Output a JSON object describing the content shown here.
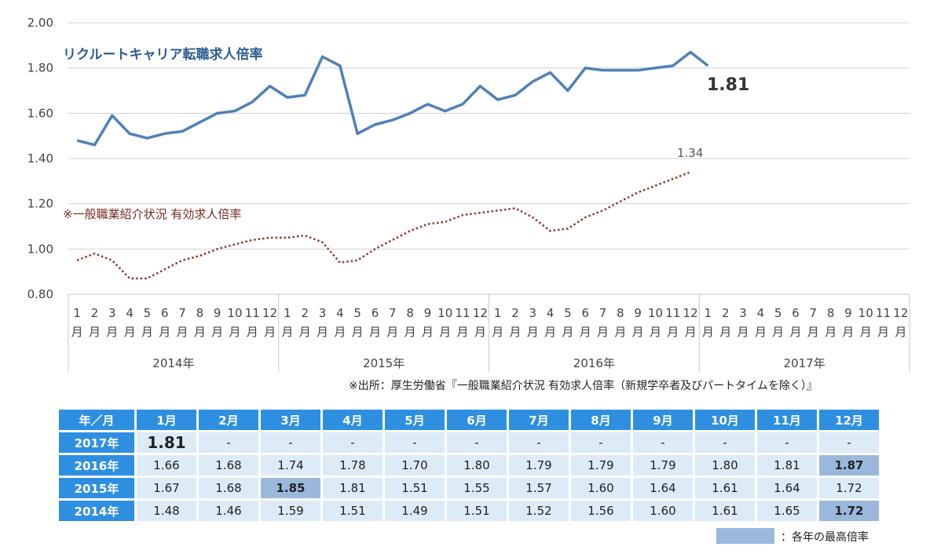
{
  "chart_data": {
    "type": "line",
    "title": "リクルートキャリア転職求人倍率",
    "secondary_title": "※一般職業紹介状況 有効求人倍率",
    "ylim": [
      0.8,
      2.0
    ],
    "y_ticks": [
      "2.00",
      "1.80",
      "1.60",
      "1.40",
      "1.20",
      "1.00",
      "0.80"
    ],
    "y_tick_values": [
      2.0,
      1.8,
      1.6,
      1.4,
      1.2,
      1.0,
      0.8
    ],
    "months": [
      "1",
      "2",
      "3",
      "4",
      "5",
      "6",
      "7",
      "8",
      "9",
      "10",
      "11",
      "12"
    ],
    "month_suffix": "月",
    "years": [
      "2014年",
      "2015年",
      "2016年",
      "2017年"
    ],
    "series": [
      {
        "name": "リクルートキャリア転職求人倍率",
        "style": "solid",
        "color": "#4f81b9",
        "values": [
          1.48,
          1.46,
          1.59,
          1.51,
          1.49,
          1.51,
          1.52,
          1.56,
          1.6,
          1.61,
          1.65,
          1.72,
          1.67,
          1.68,
          1.85,
          1.81,
          1.51,
          1.55,
          1.57,
          1.6,
          1.64,
          1.61,
          1.64,
          1.72,
          1.66,
          1.68,
          1.74,
          1.78,
          1.7,
          1.8,
          1.79,
          1.79,
          1.79,
          1.8,
          1.81,
          1.87,
          1.81
        ],
        "end_label": "1.81"
      },
      {
        "name": "一般職業紹介状況 有効求人倍率",
        "style": "dotted",
        "color": "#8b3a2e",
        "values": [
          0.95,
          0.98,
          0.95,
          0.87,
          0.87,
          0.91,
          0.95,
          0.97,
          1.0,
          1.02,
          1.04,
          1.05,
          1.05,
          1.06,
          1.03,
          0.94,
          0.95,
          1.0,
          1.04,
          1.08,
          1.11,
          1.12,
          1.15,
          1.16,
          1.17,
          1.18,
          1.14,
          1.08,
          1.09,
          1.14,
          1.17,
          1.21,
          1.25,
          1.28,
          1.31,
          1.34
        ],
        "end_label": "1.34"
      }
    ]
  },
  "source_note": "※出所：厚生労働省『一般職業紹介状況 有効求人倍率（新規学卒者及びパートタイムを除く）』",
  "table": {
    "corner": "年／月",
    "headers": [
      "1月",
      "2月",
      "3月",
      "4月",
      "5月",
      "6月",
      "7月",
      "8月",
      "9月",
      "10月",
      "11月",
      "12月"
    ],
    "rows": [
      {
        "year": "2017年",
        "cells": [
          "1.81",
          "-",
          "-",
          "-",
          "-",
          "-",
          "-",
          "-",
          "-",
          "-",
          "-",
          "-"
        ],
        "highlight": [
          0
        ],
        "big": [
          0
        ]
      },
      {
        "year": "2016年",
        "cells": [
          "1.66",
          "1.68",
          "1.74",
          "1.78",
          "1.70",
          "1.80",
          "1.79",
          "1.79",
          "1.79",
          "1.80",
          "1.81",
          "1.87"
        ],
        "highlight": [
          11
        ],
        "big": []
      },
      {
        "year": "2015年",
        "cells": [
          "1.67",
          "1.68",
          "1.85",
          "1.81",
          "1.51",
          "1.55",
          "1.57",
          "1.60",
          "1.64",
          "1.61",
          "1.64",
          "1.72"
        ],
        "highlight": [
          2
        ],
        "big": []
      },
      {
        "year": "2014年",
        "cells": [
          "1.48",
          "1.46",
          "1.59",
          "1.51",
          "1.49",
          "1.51",
          "1.52",
          "1.56",
          "1.60",
          "1.61",
          "1.65",
          "1.72"
        ],
        "highlight": [
          11
        ],
        "big": []
      }
    ]
  },
  "legend": {
    "text": "：各年の最高倍率",
    "color": "#9ab8db"
  }
}
